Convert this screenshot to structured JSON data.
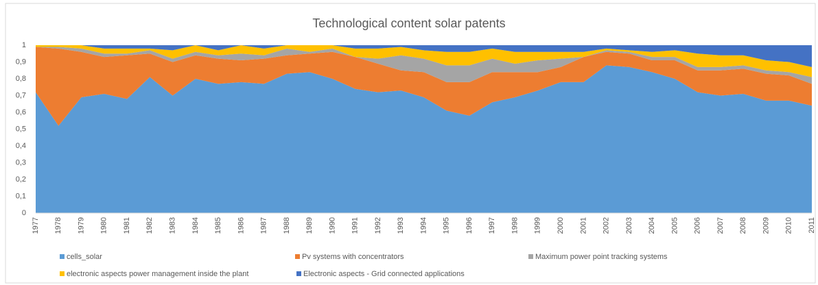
{
  "chart_data": {
    "type": "stacked_area",
    "title": "Technological content solar patents",
    "categories": [
      "1977",
      "1978",
      "1979",
      "1980",
      "1981",
      "1982",
      "1983",
      "1984",
      "1985",
      "1986",
      "1987",
      "1988",
      "1989",
      "1990",
      "1991",
      "1992",
      "1993",
      "1994",
      "1995",
      "1996",
      "1997",
      "1998",
      "1999",
      "2000",
      "2001",
      "2002",
      "2003",
      "2004",
      "2005",
      "2006",
      "2007",
      "2008",
      "2009",
      "2010",
      "2011"
    ],
    "series": [
      {
        "name": "cells_solar",
        "color": "#5b9bd5",
        "values": [
          0.72,
          0.52,
          0.69,
          0.71,
          0.68,
          0.81,
          0.7,
          0.8,
          0.77,
          0.78,
          0.77,
          0.83,
          0.84,
          0.8,
          0.74,
          0.72,
          0.73,
          0.69,
          0.61,
          0.58,
          0.66,
          0.69,
          0.73,
          0.78,
          0.78,
          0.88,
          0.87,
          0.84,
          0.8,
          0.72,
          0.7,
          0.71,
          0.67,
          0.67,
          0.64
        ]
      },
      {
        "name": "Pv systems with concentrators",
        "color": "#ed7d31",
        "values": [
          0.27,
          0.46,
          0.27,
          0.22,
          0.26,
          0.14,
          0.2,
          0.14,
          0.15,
          0.13,
          0.15,
          0.11,
          0.11,
          0.16,
          0.19,
          0.17,
          0.12,
          0.15,
          0.17,
          0.2,
          0.18,
          0.15,
          0.11,
          0.09,
          0.15,
          0.08,
          0.08,
          0.07,
          0.11,
          0.13,
          0.15,
          0.15,
          0.16,
          0.15,
          0.13
        ]
      },
      {
        "name": "Maximum power point tracking systems",
        "color": "#a5a5a5",
        "values": [
          0,
          0.01,
          0.02,
          0.02,
          0.01,
          0.02,
          0.02,
          0.02,
          0.02,
          0.04,
          0.02,
          0.04,
          0.01,
          0.02,
          0,
          0.03,
          0.09,
          0.08,
          0.1,
          0.1,
          0.08,
          0.05,
          0.07,
          0.05,
          0,
          0.01,
          0.01,
          0.02,
          0.02,
          0.02,
          0.02,
          0.02,
          0.02,
          0.02,
          0.04
        ]
      },
      {
        "name": "electronic aspects power management inside the plant",
        "color": "#ffc000",
        "values": [
          0.01,
          0.01,
          0.02,
          0.03,
          0.03,
          0.01,
          0.05,
          0.04,
          0.03,
          0.05,
          0.04,
          0.02,
          0.04,
          0.02,
          0.05,
          0.06,
          0.05,
          0.05,
          0.08,
          0.08,
          0.06,
          0.07,
          0.05,
          0.04,
          0.03,
          0.01,
          0.01,
          0.03,
          0.04,
          0.08,
          0.07,
          0.06,
          0.06,
          0.06,
          0.06
        ]
      },
      {
        "name": "Electronic aspects - Grid connected applications",
        "color": "#4472c4",
        "values": [
          0,
          0,
          0,
          0.02,
          0.02,
          0.02,
          0.03,
          0,
          0.03,
          0,
          0.02,
          0,
          0,
          0,
          0.02,
          0.02,
          0.01,
          0.03,
          0.04,
          0.04,
          0.02,
          0.04,
          0.04,
          0.04,
          0.04,
          0.02,
          0.03,
          0.04,
          0.03,
          0.05,
          0.06,
          0.06,
          0.09,
          0.1,
          0.13
        ]
      }
    ],
    "ylim": [
      0,
      1
    ],
    "yticks": [
      0,
      {
        "value": 0.1,
        "label": "0,1"
      },
      {
        "value": 0.2,
        "label": "0,2"
      },
      {
        "value": 0.3,
        "label": "0,3"
      },
      {
        "value": 0.4,
        "label": "0,4"
      },
      {
        "value": 0.5,
        "label": "0,5"
      },
      {
        "value": 0.6,
        "label": "0,6"
      },
      {
        "value": 0.7,
        "label": "0,7"
      },
      {
        "value": 0.8,
        "label": "0,8"
      },
      {
        "value": 0.9,
        "label": "0,9"
      },
      1
    ],
    "legend": "bottom"
  }
}
